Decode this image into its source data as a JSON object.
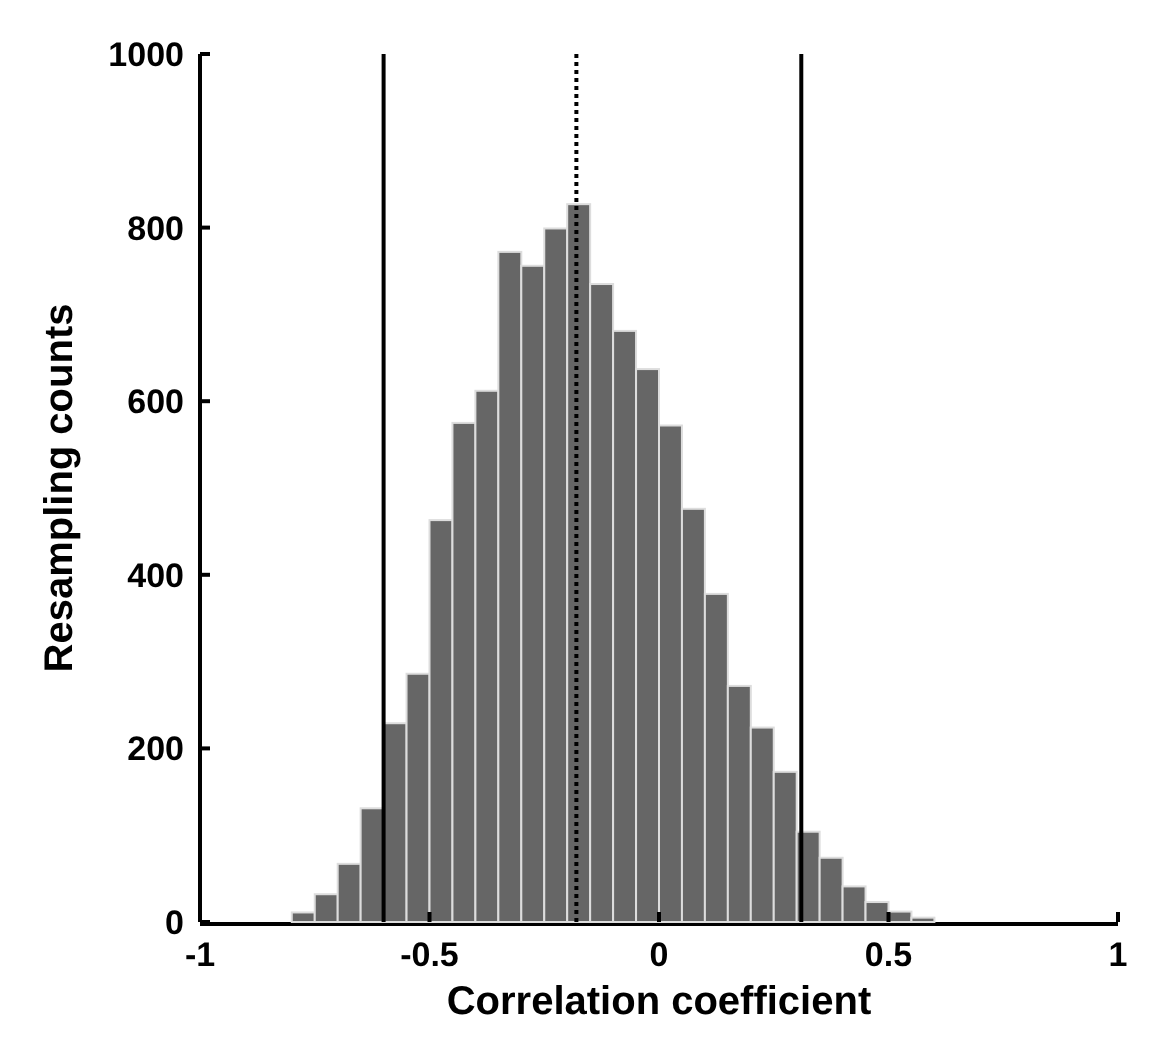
{
  "chart_data": {
    "type": "histogram",
    "xlabel": "Correlation coefficient",
    "ylabel": "Resampling counts",
    "bins": [
      -0.8,
      -0.75,
      -0.7,
      -0.65,
      -0.6,
      -0.55,
      -0.5,
      -0.45,
      -0.4,
      -0.35,
      -0.3,
      -0.25,
      -0.2,
      -0.15,
      -0.1,
      -0.05,
      0,
      0.05,
      0.1,
      0.15,
      0.2,
      0.25,
      0.3,
      0.35,
      0.4,
      0.45,
      0.5,
      0.55,
      0.6
    ],
    "values": [
      11,
      32,
      67,
      131,
      229,
      286,
      463,
      575,
      612,
      772,
      756,
      799,
      827,
      735,
      681,
      637,
      572,
      476,
      378,
      272,
      224,
      173,
      104,
      74,
      41,
      23,
      12,
      5
    ],
    "color": "#666666",
    "xlim": [
      -1,
      1
    ],
    "xticks": [
      -1,
      -0.5,
      0,
      0.5,
      1
    ],
    "ylim": [
      0,
      1000
    ],
    "yticks": [
      0,
      200,
      400,
      600,
      800,
      1000
    ],
    "ref_lines": [
      {
        "axis": "x",
        "value": -0.6,
        "line_style": "solid",
        "color": "#000000"
      },
      {
        "axis": "x",
        "value": -0.18,
        "line_style": "dotted",
        "color": "#000000"
      },
      {
        "axis": "x",
        "value": 0.31,
        "line_style": "solid",
        "color": "#000000"
      }
    ]
  }
}
